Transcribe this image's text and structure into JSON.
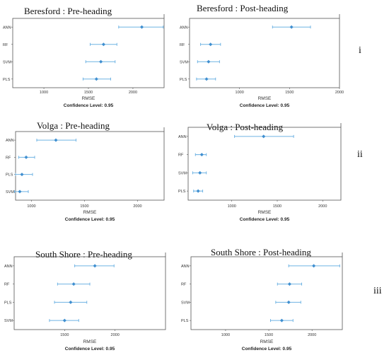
{
  "row_labels": [
    "i",
    "ii",
    "iii"
  ],
  "chart_data": [
    {
      "type": "forest",
      "title": "Beresford : Pre-heading",
      "xlabel": "RMSE",
      "footer": "Confidence Level: 0.95",
      "xlim": [
        650,
        2350
      ],
      "xticks": [
        1000,
        1500,
        2000
      ],
      "models": [
        {
          "name": "ANN",
          "estimate": 2100,
          "lower": 1840,
          "upper": 2340
        },
        {
          "name": "RF",
          "estimate": 1670,
          "lower": 1520,
          "upper": 1820
        },
        {
          "name": "SVM",
          "estimate": 1640,
          "lower": 1470,
          "upper": 1800
        },
        {
          "name": "PLS",
          "estimate": 1590,
          "lower": 1440,
          "upper": 1750
        }
      ]
    },
    {
      "type": "forest",
      "title": "Beresford : Post-heading",
      "xlabel": "RMSE",
      "footer": "Confidence Level: 0.95",
      "xlim": [
        500,
        2000
      ],
      "xticks": [
        1000,
        1500,
        2000
      ],
      "models": [
        {
          "name": "ANN",
          "estimate": 1520,
          "lower": 1330,
          "upper": 1710
        },
        {
          "name": "RF",
          "estimate": 710,
          "lower": 610,
          "upper": 810
        },
        {
          "name": "SVM",
          "estimate": 690,
          "lower": 580,
          "upper": 800
        },
        {
          "name": "PLS",
          "estimate": 670,
          "lower": 570,
          "upper": 760
        }
      ]
    },
    {
      "type": "forest",
      "title": "Volga : Pre-heading",
      "xlabel": "RMSE",
      "footer": "Confidence Level: 0.95",
      "xlim": [
        850,
        2250
      ],
      "xticks": [
        1000,
        1500,
        2000
      ],
      "models": [
        {
          "name": "ANN",
          "estimate": 1230,
          "lower": 1050,
          "upper": 1420
        },
        {
          "name": "RF",
          "estimate": 950,
          "lower": 880,
          "upper": 1030
        },
        {
          "name": "PLS",
          "estimate": 910,
          "lower": 850,
          "upper": 1010
        },
        {
          "name": "SVM",
          "estimate": 890,
          "lower": 840,
          "upper": 970
        }
      ]
    },
    {
      "type": "forest",
      "title": "Volga : Post-heading",
      "xlabel": "RMSE",
      "footer": "Confidence Level: 0.95",
      "xlim": [
        520,
        2200
      ],
      "xticks": [
        1000,
        1500,
        2000
      ],
      "models": [
        {
          "name": "ANN",
          "estimate": 1350,
          "lower": 1030,
          "upper": 1680
        },
        {
          "name": "RF",
          "estimate": 670,
          "lower": 600,
          "upper": 720
        },
        {
          "name": "SVM",
          "estimate": 650,
          "lower": 570,
          "upper": 720
        },
        {
          "name": "PLS",
          "estimate": 630,
          "lower": 580,
          "upper": 680
        }
      ]
    },
    {
      "type": "forest",
      "title": "South Shore : Pre-heading",
      "xlabel": "RMSE",
      "footer": "Confidence Level: 0.95",
      "xlim": [
        1000,
        2500
      ],
      "xticks": [
        1500,
        2000
      ],
      "models": [
        {
          "name": "ANN",
          "estimate": 1800,
          "lower": 1600,
          "upper": 1990
        },
        {
          "name": "RF",
          "estimate": 1590,
          "lower": 1430,
          "upper": 1750
        },
        {
          "name": "PLS",
          "estimate": 1560,
          "lower": 1400,
          "upper": 1720
        },
        {
          "name": "SVM",
          "estimate": 1500,
          "lower": 1350,
          "upper": 1640
        }
      ]
    },
    {
      "type": "forest",
      "title": "South Shore : Post-heading",
      "xlabel": "RMSE",
      "footer": "Confidence Level: 0.95",
      "xlim": [
        600,
        2350
      ],
      "xticks": [
        1000,
        1500,
        2000
      ],
      "models": [
        {
          "name": "ANN",
          "estimate": 2020,
          "lower": 1730,
          "upper": 2320
        },
        {
          "name": "RF",
          "estimate": 1740,
          "lower": 1600,
          "upper": 1880
        },
        {
          "name": "SVM",
          "estimate": 1730,
          "lower": 1580,
          "upper": 1870
        },
        {
          "name": "PLS",
          "estimate": 1650,
          "lower": 1520,
          "upper": 1780
        }
      ]
    }
  ]
}
